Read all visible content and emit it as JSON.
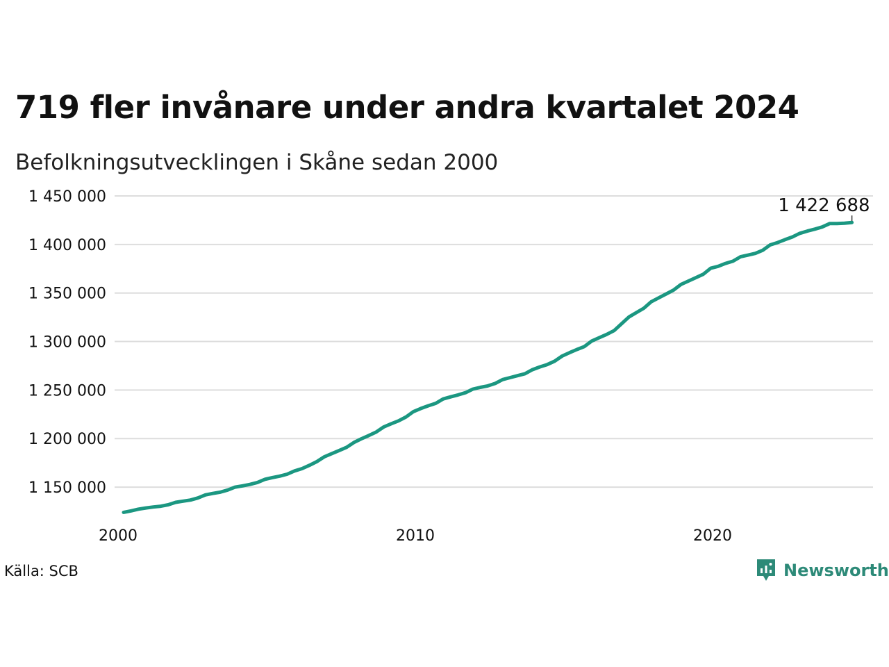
{
  "title": "719 fler invånare under andra kvartalet 2024",
  "subtitle": "Befolkningsutvecklingen i Skåne sedan 2000",
  "source": "Källa: SCB",
  "brand": {
    "name": "Newsworthy",
    "icon": "newsworthy-chart-bubble-icon"
  },
  "colors": {
    "line": "#1b9781",
    "grid": "#dddddd",
    "brand": "#2d8a78"
  },
  "chart_data": {
    "type": "line",
    "title": "719 fler invånare under andra kvartalet 2024",
    "subtitle": "Befolkningsutvecklingen i Skåne sedan 2000",
    "xlabel": "",
    "ylabel": "",
    "x_ticks": [
      "2000",
      "2010",
      "2020"
    ],
    "y_ticks": [
      "1 150 000",
      "1 200 000",
      "1 250 000",
      "1 300 000",
      "1 350 000",
      "1 400 000",
      "1 450 000"
    ],
    "y_tick_values": [
      1150000,
      1200000,
      1250000,
      1300000,
      1350000,
      1400000,
      1450000
    ],
    "ylim": [
      1120000,
      1450000
    ],
    "xlim": [
      2000.0,
      2025.2
    ],
    "grid": true,
    "last_label": "1 422 688",
    "series": [
      {
        "values": [
          {
            "x": 2000.0,
            "y": 1124000
          },
          {
            "x": 2000.25,
            "y": 1125500
          },
          {
            "x": 2000.5,
            "y": 1127300
          },
          {
            "x": 2000.75,
            "y": 1128500
          },
          {
            "x": 2001.0,
            "y": 1129500
          },
          {
            "x": 2001.25,
            "y": 1130300
          },
          {
            "x": 2001.5,
            "y": 1131800
          },
          {
            "x": 2001.75,
            "y": 1134300
          },
          {
            "x": 2002.0,
            "y": 1135500
          },
          {
            "x": 2002.25,
            "y": 1136700
          },
          {
            "x": 2002.5,
            "y": 1138800
          },
          {
            "x": 2002.75,
            "y": 1142000
          },
          {
            "x": 2003.0,
            "y": 1143500
          },
          {
            "x": 2003.25,
            "y": 1144800
          },
          {
            "x": 2003.5,
            "y": 1147000
          },
          {
            "x": 2003.75,
            "y": 1150000
          },
          {
            "x": 2004.0,
            "y": 1151300
          },
          {
            "x": 2004.25,
            "y": 1152800
          },
          {
            "x": 2004.5,
            "y": 1154800
          },
          {
            "x": 2004.75,
            "y": 1158000
          },
          {
            "x": 2005.0,
            "y": 1159800
          },
          {
            "x": 2005.25,
            "y": 1161300
          },
          {
            "x": 2005.5,
            "y": 1163300
          },
          {
            "x": 2005.75,
            "y": 1166700
          },
          {
            "x": 2006.0,
            "y": 1169000
          },
          {
            "x": 2006.25,
            "y": 1172500
          },
          {
            "x": 2006.5,
            "y": 1176300
          },
          {
            "x": 2006.75,
            "y": 1181200
          },
          {
            "x": 2007.0,
            "y": 1184500
          },
          {
            "x": 2007.25,
            "y": 1187700
          },
          {
            "x": 2007.5,
            "y": 1191000
          },
          {
            "x": 2007.75,
            "y": 1196000
          },
          {
            "x": 2008.0,
            "y": 1199800
          },
          {
            "x": 2008.25,
            "y": 1203200
          },
          {
            "x": 2008.5,
            "y": 1206800
          },
          {
            "x": 2008.75,
            "y": 1212000
          },
          {
            "x": 2009.0,
            "y": 1215300
          },
          {
            "x": 2009.25,
            "y": 1218300
          },
          {
            "x": 2009.5,
            "y": 1222300
          },
          {
            "x": 2009.75,
            "y": 1227800
          },
          {
            "x": 2010.0,
            "y": 1231000
          },
          {
            "x": 2010.25,
            "y": 1233800
          },
          {
            "x": 2010.5,
            "y": 1236300
          },
          {
            "x": 2010.75,
            "y": 1240800
          },
          {
            "x": 2011.0,
            "y": 1243000
          },
          {
            "x": 2011.25,
            "y": 1245000
          },
          {
            "x": 2011.5,
            "y": 1247300
          },
          {
            "x": 2011.75,
            "y": 1251000
          },
          {
            "x": 2012.0,
            "y": 1252800
          },
          {
            "x": 2012.25,
            "y": 1254300
          },
          {
            "x": 2012.5,
            "y": 1256800
          },
          {
            "x": 2012.75,
            "y": 1260800
          },
          {
            "x": 2013.0,
            "y": 1262800
          },
          {
            "x": 2013.25,
            "y": 1264800
          },
          {
            "x": 2013.5,
            "y": 1266800
          },
          {
            "x": 2013.75,
            "y": 1271000
          },
          {
            "x": 2014.0,
            "y": 1273800
          },
          {
            "x": 2014.25,
            "y": 1276300
          },
          {
            "x": 2014.5,
            "y": 1279800
          },
          {
            "x": 2014.75,
            "y": 1285000
          },
          {
            "x": 2015.0,
            "y": 1288500
          },
          {
            "x": 2015.25,
            "y": 1291800
          },
          {
            "x": 2015.5,
            "y": 1294800
          },
          {
            "x": 2015.75,
            "y": 1300500
          },
          {
            "x": 2016.0,
            "y": 1304000
          },
          {
            "x": 2016.25,
            "y": 1307300
          },
          {
            "x": 2016.5,
            "y": 1311300
          },
          {
            "x": 2016.75,
            "y": 1318300
          },
          {
            "x": 2017.0,
            "y": 1325300
          },
          {
            "x": 2017.25,
            "y": 1329800
          },
          {
            "x": 2017.5,
            "y": 1334300
          },
          {
            "x": 2017.75,
            "y": 1341000
          },
          {
            "x": 2018.0,
            "y": 1345000
          },
          {
            "x": 2018.25,
            "y": 1349000
          },
          {
            "x": 2018.5,
            "y": 1353000
          },
          {
            "x": 2018.75,
            "y": 1358800
          },
          {
            "x": 2019.0,
            "y": 1362300
          },
          {
            "x": 2019.25,
            "y": 1365800
          },
          {
            "x": 2019.5,
            "y": 1369300
          },
          {
            "x": 2019.75,
            "y": 1375500
          },
          {
            "x": 2020.0,
            "y": 1377500
          },
          {
            "x": 2020.25,
            "y": 1380500
          },
          {
            "x": 2020.5,
            "y": 1382800
          },
          {
            "x": 2020.75,
            "y": 1387300
          },
          {
            "x": 2021.0,
            "y": 1389000
          },
          {
            "x": 2021.25,
            "y": 1390800
          },
          {
            "x": 2021.5,
            "y": 1394000
          },
          {
            "x": 2021.75,
            "y": 1399500
          },
          {
            "x": 2022.0,
            "y": 1402000
          },
          {
            "x": 2022.25,
            "y": 1405000
          },
          {
            "x": 2022.5,
            "y": 1407800
          },
          {
            "x": 2022.75,
            "y": 1411500
          },
          {
            "x": 2023.0,
            "y": 1413800
          },
          {
            "x": 2023.25,
            "y": 1415800
          },
          {
            "x": 2023.5,
            "y": 1418000
          },
          {
            "x": 2023.75,
            "y": 1421500
          },
          {
            "x": 2024.0,
            "y": 1421600
          },
          {
            "x": 2024.25,
            "y": 1421969
          },
          {
            "x": 2024.5,
            "y": 1422688
          }
        ]
      }
    ]
  }
}
